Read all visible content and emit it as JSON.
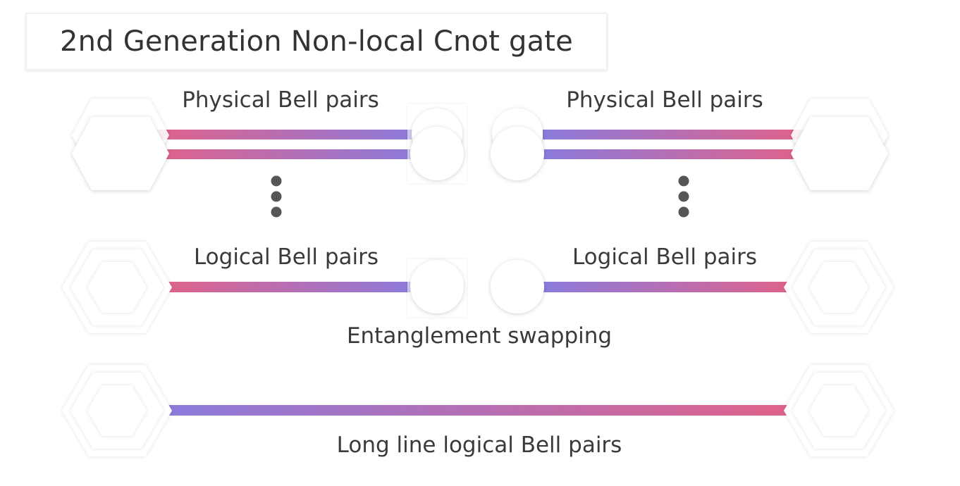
{
  "title": "2nd Generation Non-local Cnot gate",
  "labels": {
    "physical_left": "Physical Bell pairs",
    "physical_right": "Physical Bell pairs",
    "logical_left": "Logical Bell pairs",
    "logical_right": "Logical Bell pairs",
    "swapping": "Entanglement swapping",
    "long_line": "Long line logical Bell pairs"
  },
  "colors": {
    "pink": "#e0628a",
    "purple": "#8b7bdc",
    "node_fill": "#ffffff",
    "node_shadow": "#d9d9d9",
    "dots": "#555555"
  }
}
